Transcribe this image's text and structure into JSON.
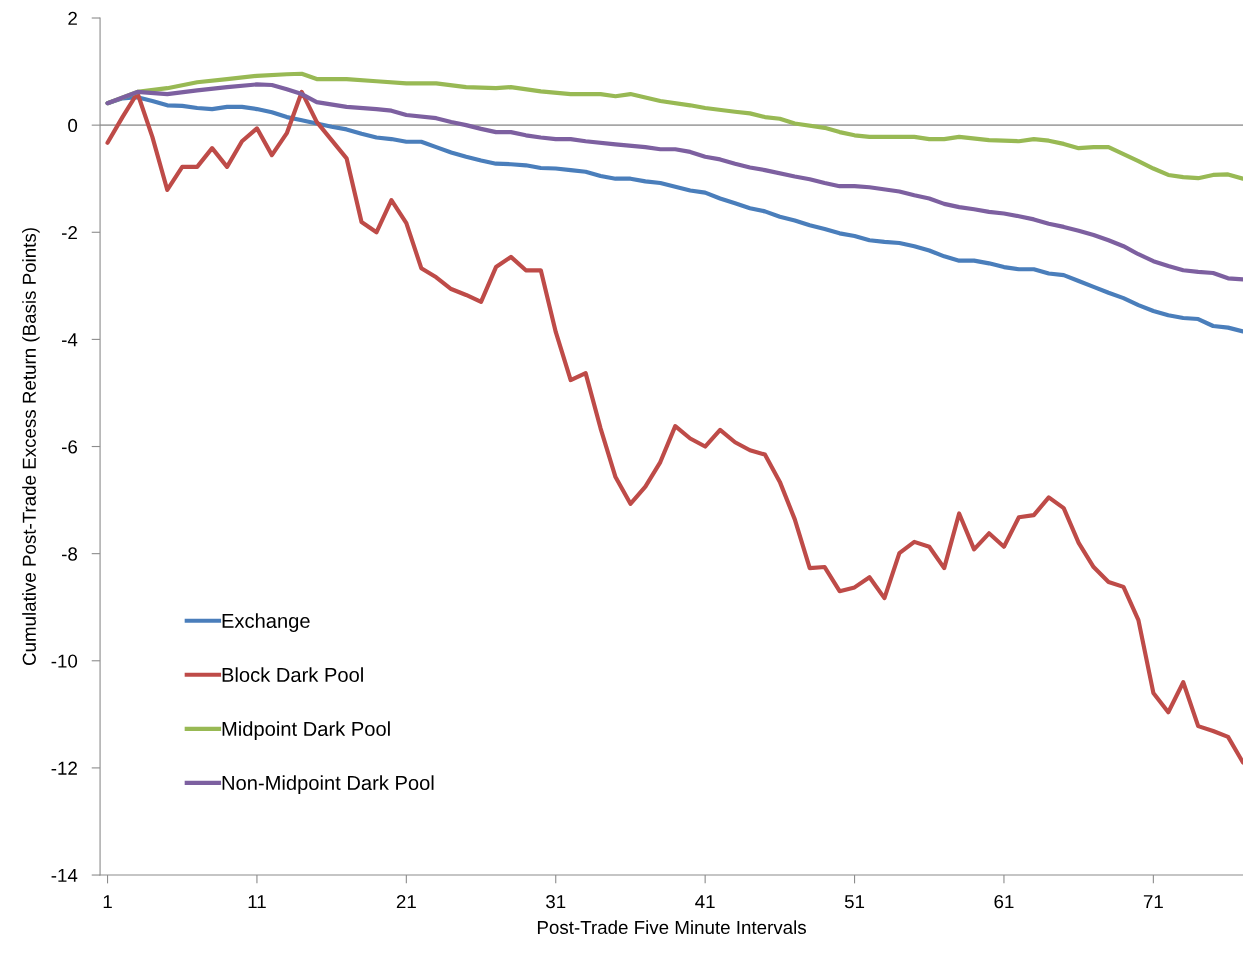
{
  "chart_data": {
    "type": "line",
    "xlabel": "Post-Trade Five Minute Intervals",
    "ylabel": "Cumulative Post-Trade Excess Return (Basis Points)",
    "x": [
      1,
      2,
      3,
      4,
      5,
      6,
      7,
      8,
      9,
      10,
      11,
      12,
      13,
      14,
      15,
      16,
      17,
      18,
      19,
      20,
      21,
      22,
      23,
      24,
      25,
      26,
      27,
      28,
      29,
      30,
      31,
      32,
      33,
      34,
      35,
      36,
      37,
      38,
      39,
      40,
      41,
      42,
      43,
      44,
      45,
      46,
      47,
      48,
      49,
      50,
      51,
      52,
      53,
      54,
      55,
      56,
      57,
      58,
      59,
      60,
      61,
      62,
      63,
      64,
      65,
      66,
      67,
      68,
      69,
      70,
      71,
      72,
      73,
      74,
      75,
      76,
      77
    ],
    "series": [
      {
        "name": "Exchange",
        "color": "#4a7ebb",
        "values": [
          0.41,
          0.5,
          0.52,
          0.45,
          0.37,
          0.36,
          0.32,
          0.3,
          0.34,
          0.34,
          0.3,
          0.24,
          0.15,
          0.09,
          0.03,
          -0.03,
          -0.08,
          -0.16,
          -0.23,
          -0.26,
          -0.31,
          -0.31,
          -0.41,
          -0.51,
          -0.59,
          -0.66,
          -0.72,
          -0.73,
          -0.75,
          -0.8,
          -0.81,
          -0.84,
          -0.87,
          -0.95,
          -1.0,
          -1.0,
          -1.05,
          -1.08,
          -1.15,
          -1.22,
          -1.26,
          -1.37,
          -1.46,
          -1.55,
          -1.61,
          -1.71,
          -1.78,
          -1.87,
          -1.94,
          -2.02,
          -2.07,
          -2.15,
          -2.18,
          -2.2,
          -2.26,
          -2.34,
          -2.45,
          -2.53,
          -2.53,
          -2.58,
          -2.65,
          -2.69,
          -2.69,
          -2.77,
          -2.8,
          -2.91,
          -3.02,
          -3.13,
          -3.23,
          -3.36,
          -3.47,
          -3.55,
          -3.6,
          -3.62,
          -3.75,
          -3.78,
          -3.85
        ]
      },
      {
        "name": "Block Dark Pool",
        "color": "#be4b48",
        "values": [
          -0.33,
          0.15,
          0.6,
          -0.22,
          -1.21,
          -0.78,
          -0.78,
          -0.43,
          -0.78,
          -0.3,
          -0.06,
          -0.56,
          -0.15,
          0.62,
          0.06,
          -0.28,
          -0.62,
          -1.81,
          -2.0,
          -1.4,
          -1.83,
          -2.67,
          -2.84,
          -3.06,
          -3.17,
          -3.3,
          -2.65,
          -2.46,
          -2.71,
          -2.71,
          -3.86,
          -4.76,
          -4.63,
          -5.66,
          -6.57,
          -7.07,
          -6.75,
          -6.29,
          -5.62,
          -5.85,
          -6.0,
          -5.69,
          -5.92,
          -6.07,
          -6.15,
          -6.66,
          -7.36,
          -8.27,
          -8.25,
          -8.7,
          -8.63,
          -8.44,
          -8.83,
          -7.99,
          -7.78,
          -7.87,
          -8.27,
          -7.25,
          -7.92,
          -7.62,
          -7.87,
          -7.32,
          -7.28,
          -6.95,
          -7.15,
          -7.8,
          -8.25,
          -8.53,
          -8.62,
          -9.24,
          -10.6,
          -10.96,
          -10.4,
          -11.22,
          -11.31,
          -11.42,
          -11.9
        ]
      },
      {
        "name": "Midpoint Dark Pool",
        "color": "#98b954",
        "x": [
          1,
          3,
          5,
          7,
          9,
          11,
          13,
          14,
          15,
          17,
          19,
          21,
          23,
          25,
          27,
          28,
          30,
          32,
          34,
          35,
          36,
          38,
          40,
          41,
          43,
          44,
          45,
          46,
          47,
          49,
          50,
          51,
          52,
          54,
          55,
          56,
          57,
          58,
          60,
          62,
          63,
          64,
          65,
          66,
          67,
          68,
          69,
          70,
          71,
          72,
          73,
          74,
          75,
          76,
          77
        ],
        "values": [
          0.41,
          0.62,
          0.69,
          0.8,
          0.86,
          0.92,
          0.95,
          0.96,
          0.86,
          0.86,
          0.82,
          0.78,
          0.78,
          0.71,
          0.69,
          0.71,
          0.63,
          0.58,
          0.58,
          0.54,
          0.58,
          0.45,
          0.37,
          0.32,
          0.25,
          0.22,
          0.15,
          0.12,
          0.03,
          -0.05,
          -0.13,
          -0.19,
          -0.22,
          -0.22,
          -0.22,
          -0.26,
          -0.26,
          -0.22,
          -0.28,
          -0.3,
          -0.26,
          -0.29,
          -0.35,
          -0.43,
          -0.41,
          -0.41,
          -0.54,
          -0.67,
          -0.81,
          -0.93,
          -0.97,
          -0.99,
          -0.93,
          -0.92,
          -1.0
        ]
      },
      {
        "name": "Non-Midpoint Dark Pool",
        "color": "#7d60a0",
        "x": [
          1,
          3,
          5,
          7,
          9,
          11,
          12,
          13,
          14,
          15,
          17,
          19,
          20,
          21,
          23,
          24,
          25,
          26,
          27,
          28,
          29,
          30,
          31,
          32,
          33,
          35,
          37,
          38,
          39,
          40,
          41,
          42,
          43,
          44,
          45,
          47,
          48,
          49,
          50,
          51,
          52,
          54,
          55,
          56,
          57,
          58,
          59,
          60,
          61,
          62,
          63,
          64,
          65,
          66,
          67,
          68,
          69,
          70,
          71,
          72,
          73,
          74,
          75,
          76,
          77
        ],
        "values": [
          0.41,
          0.62,
          0.58,
          0.65,
          0.71,
          0.76,
          0.75,
          0.67,
          0.58,
          0.43,
          0.34,
          0.3,
          0.27,
          0.19,
          0.13,
          0.06,
          0.0,
          -0.07,
          -0.13,
          -0.13,
          -0.19,
          -0.23,
          -0.26,
          -0.26,
          -0.3,
          -0.36,
          -0.41,
          -0.45,
          -0.45,
          -0.5,
          -0.59,
          -0.64,
          -0.72,
          -0.79,
          -0.84,
          -0.96,
          -1.01,
          -1.08,
          -1.14,
          -1.14,
          -1.16,
          -1.24,
          -1.31,
          -1.37,
          -1.47,
          -1.53,
          -1.57,
          -1.62,
          -1.65,
          -1.7,
          -1.76,
          -1.84,
          -1.9,
          -1.97,
          -2.05,
          -2.15,
          -2.26,
          -2.41,
          -2.54,
          -2.63,
          -2.71,
          -2.74,
          -2.76,
          -2.86,
          -2.88
        ]
      }
    ],
    "xlim": [
      0.5,
      77
    ],
    "xticks": [
      1,
      11,
      21,
      31,
      41,
      51,
      61,
      71
    ],
    "ylim": [
      -14,
      2
    ],
    "yticks": [
      -14,
      -12,
      -10,
      -8,
      -6,
      -4,
      -2,
      0,
      2
    ],
    "ref_lines": [
      {
        "axis": "y",
        "value": 0,
        "color": "#a6a6a6"
      }
    ],
    "grid": false,
    "legend": "bottom left",
    "marker": "none",
    "line_style": "solid"
  }
}
